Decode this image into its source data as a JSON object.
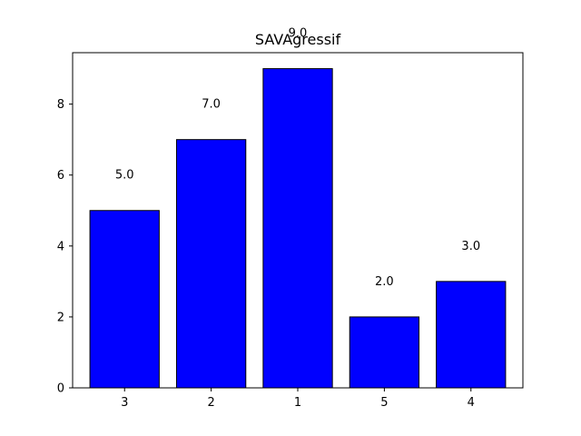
{
  "chart_data": {
    "type": "bar",
    "title": "SAVAgressif",
    "xlabel": "",
    "ylabel": "",
    "categories": [
      "3",
      "2",
      "1",
      "5",
      "4"
    ],
    "values": [
      5.0,
      7.0,
      9.0,
      2.0,
      3.0
    ],
    "data_labels": [
      "5.0",
      "7.0",
      "9.0",
      "2.0",
      "3.0"
    ],
    "ylim": [
      0,
      9.45
    ],
    "yticks": [
      0,
      2,
      4,
      6,
      8
    ],
    "grid": false,
    "legend": "none",
    "bar_color": "#0000ff",
    "edge_color": "#000000"
  }
}
